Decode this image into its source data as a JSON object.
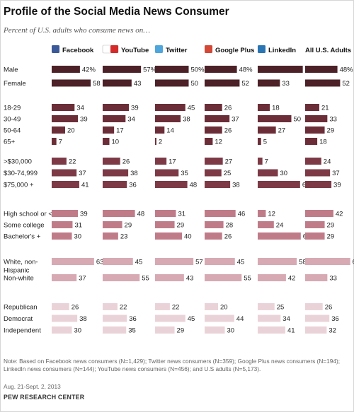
{
  "title": "Profile of the Social Media News Consumer",
  "subtitle": "Percent of U.S. adults who consume news on…",
  "note": "Note: Based on Facebook news consumers (N=1,429); Twitter news consumers (N=359); Google Plus news consumers (N=194); LinkedIn news consumers (N=144); YouTube news consumers (N=456); and U.S adults (N=5,173).",
  "date": "Aug. 21-Sept. 2, 2013",
  "source": "PEW RESEARCH CENTER",
  "icons": [
    "facebook-icon",
    "youtube-icon",
    "twitter-icon",
    "google-plus-icon",
    "linkedin-icon",
    null
  ],
  "colors": {
    "gender": "#4d2128",
    "age": "#6b2d37",
    "income": "#7d3a46",
    "education": "#c07b89",
    "race": "#d7a9b3",
    "party": "#ead3d8"
  },
  "chart_data": {
    "type": "bar",
    "orientation": "horizontal",
    "value_unit": "%",
    "series": [
      {
        "name": "Facebook",
        "values": [
          42,
          58,
          34,
          39,
          20,
          7,
          22,
          37,
          41,
          39,
          31,
          30,
          63,
          37,
          26,
          38,
          30
        ]
      },
      {
        "name": "YouTube",
        "values": [
          57,
          43,
          39,
          34,
          17,
          10,
          26,
          38,
          36,
          48,
          29,
          23,
          45,
          55,
          22,
          36,
          35
        ]
      },
      {
        "name": "Twitter",
        "values": [
          50,
          50,
          45,
          38,
          14,
          2,
          17,
          35,
          48,
          31,
          29,
          40,
          57,
          43,
          22,
          45,
          29
        ]
      },
      {
        "name": "Google Plus",
        "values": [
          48,
          52,
          26,
          37,
          26,
          12,
          27,
          25,
          38,
          46,
          28,
          26,
          45,
          55,
          20,
          44,
          30
        ]
      },
      {
        "name": "LinkedIn",
        "values": [
          67,
          33,
          18,
          50,
          27,
          5,
          7,
          30,
          63,
          12,
          24,
          64,
          58,
          42,
          25,
          34,
          41
        ]
      },
      {
        "name": "All U.S. Adults",
        "values": [
          48,
          52,
          21,
          33,
          29,
          18,
          24,
          37,
          39,
          42,
          29,
          29,
          67,
          33,
          26,
          36,
          32
        ]
      }
    ],
    "groups": [
      {
        "key": "gender",
        "rows": [
          {
            "label": "Male",
            "first_row_pct": true
          },
          {
            "label": "Female"
          }
        ]
      },
      {
        "key": "age",
        "rows": [
          {
            "label": "18-29"
          },
          {
            "label": "30-49"
          },
          {
            "label": "50-64"
          },
          {
            "label": "65+"
          }
        ]
      },
      {
        "key": "income",
        "rows": [
          {
            "label": ">$30,000"
          },
          {
            "label": "$30-74,999"
          },
          {
            "label": "$75,000 +"
          }
        ]
      },
      {
        "key": "education",
        "rows": [
          {
            "label": "High school or <"
          },
          {
            "label": "Some college"
          },
          {
            "label": "Bachelor's +"
          }
        ]
      },
      {
        "key": "race",
        "rows": [
          {
            "label": "White, non-",
            "label2": "Hispanic"
          },
          {
            "label": "Non-white"
          }
        ]
      },
      {
        "key": "party",
        "rows": [
          {
            "label": "Republican"
          },
          {
            "label": "Democrat"
          },
          {
            "label": "Independent"
          }
        ]
      }
    ]
  }
}
